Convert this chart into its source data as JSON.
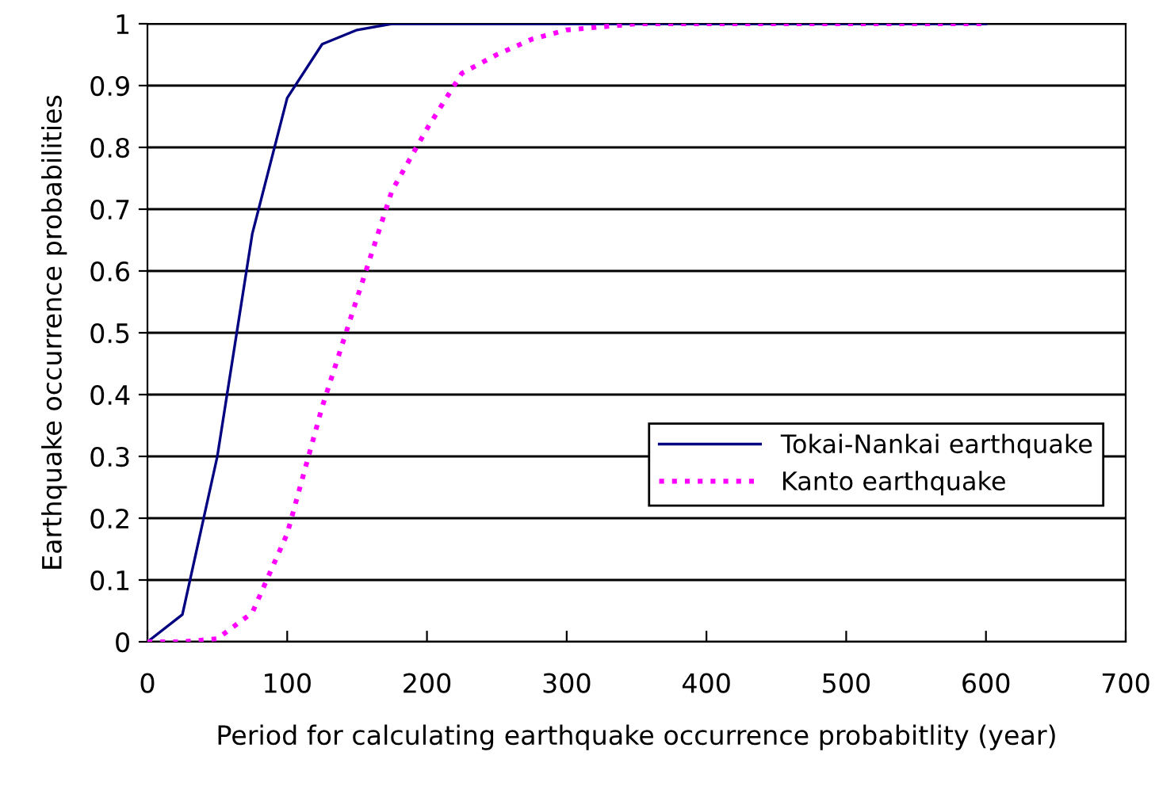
{
  "chart_data": {
    "type": "line",
    "xlabel": "Period for calculating earthquake occurrence probabitlity (year)",
    "ylabel": "Earthquake occurrence probabilities",
    "x": [
      0,
      25,
      50,
      75,
      100,
      125,
      150,
      175,
      200,
      225,
      250,
      275,
      300,
      325,
      350,
      375,
      400,
      425,
      450,
      475,
      500,
      525,
      550,
      575,
      600
    ],
    "series": [
      {
        "name": "Tokai-Nankai earthquake",
        "color": "#000080",
        "line_style": "solid",
        "values": [
          0,
          0.044,
          0.3,
          0.66,
          0.88,
          0.967,
          0.99,
          1,
          1,
          1,
          1,
          1,
          1,
          1,
          1,
          1,
          1,
          1,
          1,
          1,
          1,
          1,
          1,
          1,
          1
        ]
      },
      {
        "name": "Kanto earthquake",
        "color": "#ff00ff",
        "line_style": "dotted",
        "values": [
          0,
          0,
          0.005,
          0.047,
          0.175,
          0.38,
          0.556,
          0.73,
          0.83,
          0.92,
          0.95,
          0.975,
          0.99,
          0.995,
          1,
          1,
          1,
          1,
          1,
          1,
          1,
          1,
          1,
          1,
          1
        ]
      }
    ],
    "xlim": [
      0,
      700
    ],
    "xticks": [
      0,
      100,
      200,
      300,
      400,
      500,
      600,
      700
    ],
    "ylim": [
      0,
      1
    ],
    "yticks": [
      0,
      0.1,
      0.2,
      0.3,
      0.4,
      0.5,
      0.6,
      0.7,
      0.8,
      0.9,
      1
    ],
    "grid": "y",
    "legend": "bottom right",
    "marker": "none"
  }
}
